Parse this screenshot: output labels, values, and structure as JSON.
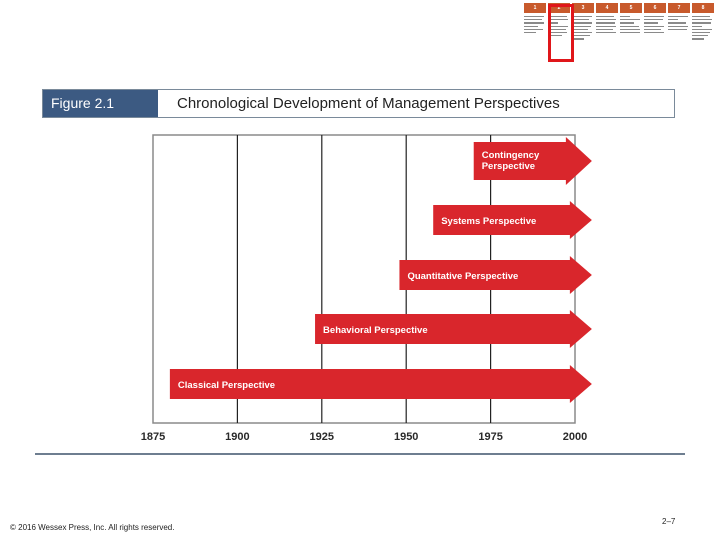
{
  "learning_objectives": {
    "numbers": [
      "1",
      "2",
      "3",
      "4",
      "5",
      "6",
      "7",
      "8"
    ],
    "highlighted_index": 1
  },
  "figure": {
    "label": "Figure 2.1",
    "title": "Chronological Development of Management Perspectives"
  },
  "chart_data": {
    "type": "timeline",
    "title": "Chronological Development of Management Perspectives",
    "xlim": [
      1875,
      2000
    ],
    "ticks": [
      "1875",
      "1900",
      "1925",
      "1950",
      "1975",
      "2000"
    ],
    "tick_values": [
      1875,
      1900,
      1925,
      1950,
      1975,
      2000
    ],
    "gridlines": [
      1900,
      1925,
      1950,
      1975
    ],
    "series": [
      {
        "name": "Contingency Perspective",
        "lines": [
          "Contingency",
          "Perspective"
        ],
        "start": 1970,
        "end": 2005
      },
      {
        "name": "Systems Perspective",
        "lines": [
          "Systems Perspective"
        ],
        "start": 1958,
        "end": 2005
      },
      {
        "name": "Quantitative Perspective",
        "lines": [
          "Quantitative Perspective"
        ],
        "start": 1948,
        "end": 2005
      },
      {
        "name": "Behavioral Perspective",
        "lines": [
          "Behavioral Perspective"
        ],
        "start": 1923,
        "end": 2005
      },
      {
        "name": "Classical Perspective",
        "lines": [
          "Classical Perspective"
        ],
        "start": 1880,
        "end": 2005
      }
    ],
    "arrow_color": "#d9262c"
  },
  "footer": {
    "copyright": "© 2016 Wessex Press, Inc. All rights reserved.",
    "page": "2–7"
  }
}
